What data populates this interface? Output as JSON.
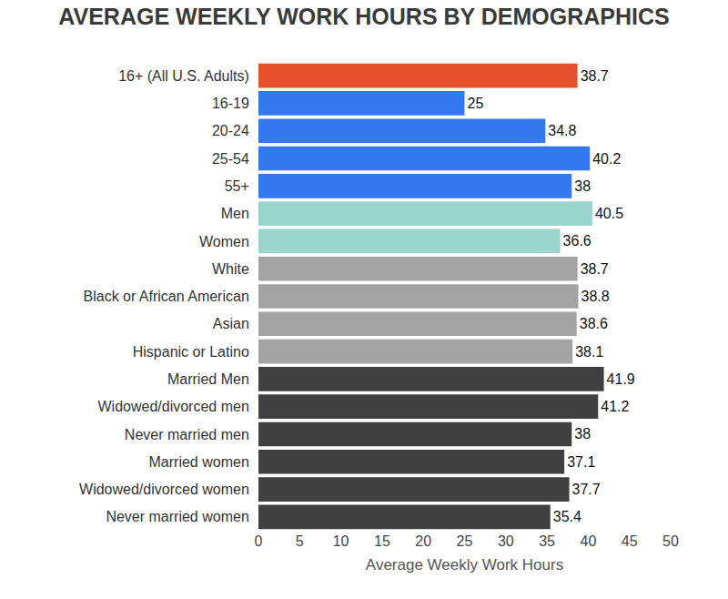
{
  "chart_data": {
    "type": "bar",
    "title": "AVERAGE WEEKLY WORK HOURS BY DEMOGRAPHICS",
    "x_label": "Average Weekly Work Hours",
    "orientation": "horizontal",
    "categories": [
      "16+ (All U.S. Adults)",
      "16-19",
      "20-24",
      "25-54",
      "55+",
      "Men",
      "Women",
      "White",
      "Black or African American",
      "Asian",
      "Hispanic or Latino",
      "Married Men",
      "Widowed/divorced men",
      "Never married men",
      "Married women",
      "Widowed/divorced women",
      "Never married women"
    ],
    "values": [
      38.7,
      25,
      34.8,
      40.2,
      38,
      40.5,
      36.6,
      38.7,
      38.8,
      38.6,
      38.1,
      41.9,
      41.2,
      38,
      37.1,
      37.7,
      35.4
    ],
    "colors": [
      "#e4522b",
      "#3478ef",
      "#3478ef",
      "#3478ef",
      "#3478ef",
      "#9ad5cd",
      "#9ad5cd",
      "#a3a3a3",
      "#a3a3a3",
      "#a3a3a3",
      "#a3a3a3",
      "#404040",
      "#404040",
      "#404040",
      "#404040",
      "#404040",
      "#404040"
    ],
    "xlim": [
      0,
      50
    ],
    "xticks": [
      0,
      5,
      10,
      15,
      20,
      25,
      30,
      35,
      40,
      45,
      50
    ],
    "grid": false,
    "data_labels": true
  }
}
